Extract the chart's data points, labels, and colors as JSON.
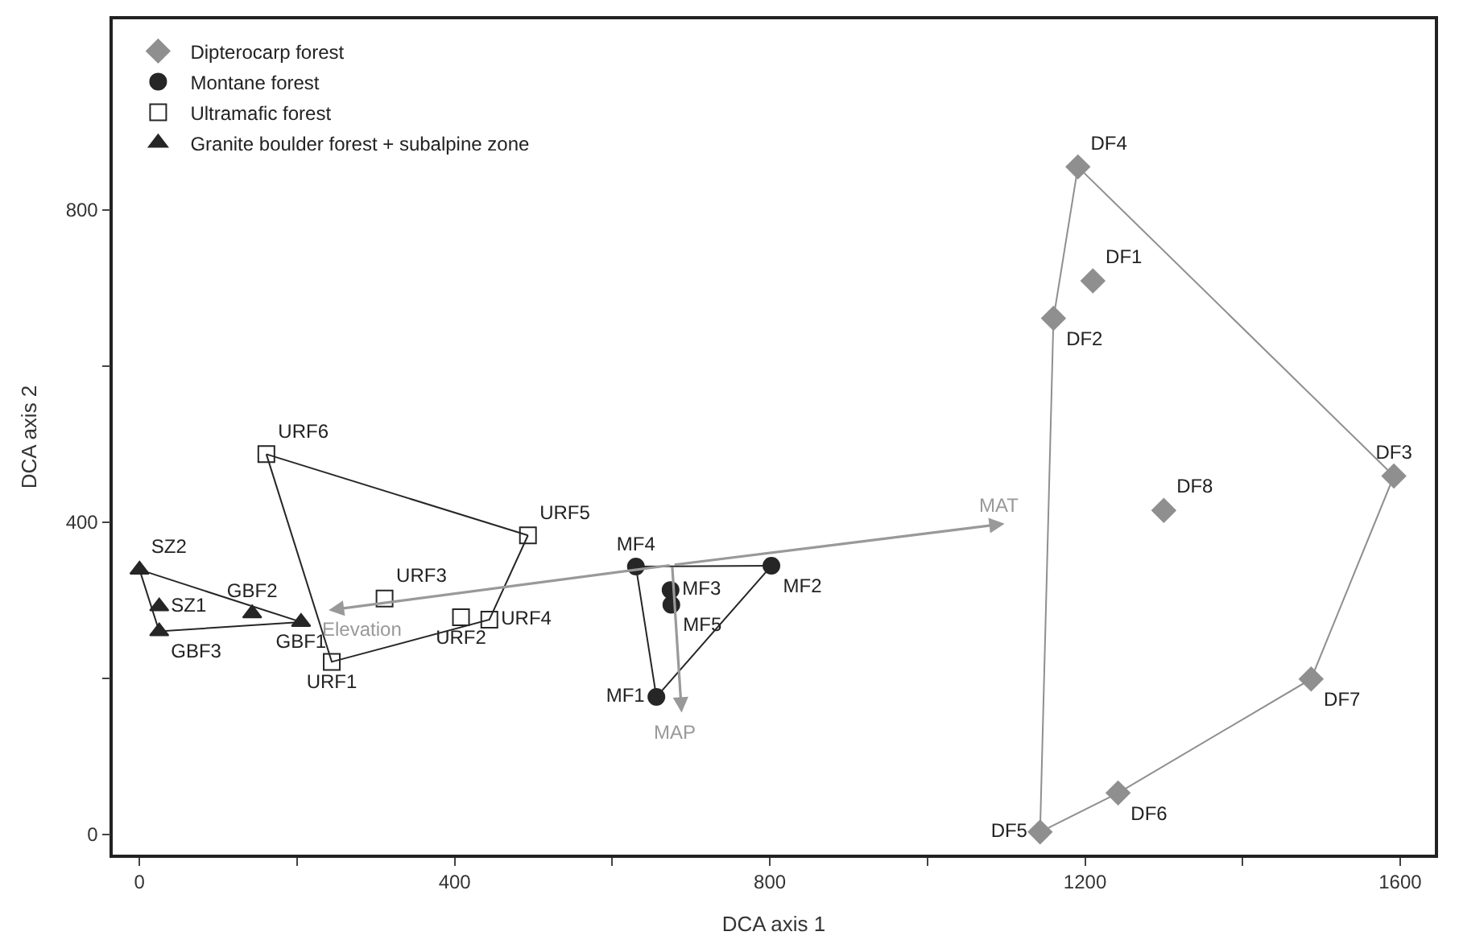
{
  "chart_data": {
    "type": "scatter",
    "xlabel": "DCA axis 1",
    "ylabel": "DCA axis 2",
    "xlim": [
      -34,
      1644
    ],
    "ylim": [
      -26,
      1044
    ],
    "xticks": [
      0,
      {
        "value": 200,
        "label": null
      },
      400,
      {
        "value": 600,
        "label": null
      },
      800,
      {
        "value": 1000,
        "label": null
      },
      1200,
      {
        "value": 1400,
        "label": null
      },
      1600
    ],
    "yticks": [
      0,
      {
        "value": 200,
        "label": null
      },
      400,
      {
        "value": 600,
        "label": null
      },
      800
    ],
    "legend": "top left",
    "series": [
      {
        "name": "Dipterocarp forest",
        "color": "#8f8f8f",
        "marker": "diamond",
        "x": [
          1210,
          1160,
          1592,
          1191,
          1143,
          1242,
          1487,
          1300
        ],
        "values": [
          709,
          661,
          459,
          855,
          3,
          53,
          199,
          415
        ],
        "value_labels": [
          "DF1",
          "DF2",
          "DF3",
          "DF4",
          "DF5",
          "DF6",
          "DF7",
          "DF8"
        ]
      },
      {
        "name": "Montane forest",
        "color": "#262626",
        "marker": "circle",
        "x": [
          656,
          802,
          674,
          630,
          675
        ],
        "values": [
          176,
          344,
          313,
          343,
          294
        ],
        "value_labels": [
          "MF1",
          "MF2",
          "MF3",
          "MF4",
          "MF5"
        ]
      },
      {
        "name": "Ultramafic forest",
        "color": "#ffffff",
        "marker": "square",
        "x": [
          244,
          408,
          311,
          444,
          493,
          161
        ],
        "values": [
          221,
          278,
          302,
          275,
          383,
          487
        ],
        "value_labels": [
          "URF1",
          "URF2",
          "URF3",
          "URF4",
          "URF5",
          "URF6"
        ]
      },
      {
        "name": "Granite boulder forest + subalpine zone",
        "color": "#262626",
        "marker": "triangle",
        "x": [
          205,
          143,
          25,
          25,
          0
        ],
        "values": [
          272,
          283,
          260,
          292,
          339
        ],
        "value_labels": [
          "GBF1",
          "GBF2",
          "GBF3",
          "SZ1",
          "SZ2"
        ]
      },
      {
        "type": "line",
        "color": "#8f8f8f",
        "marker": "none",
        "x": [
          1143,
          1160,
          1191,
          1592
        ],
        "values": [
          3,
          661,
          855,
          459
        ]
      },
      {
        "type": "line",
        "color": "#8f8f8f",
        "marker": "none",
        "x": [
          1143,
          1242,
          1487,
          1592
        ],
        "values": [
          3,
          53,
          199,
          459
        ]
      },
      {
        "type": "line",
        "color": "#262626",
        "marker": "none",
        "x": [
          630,
          802
        ],
        "values": [
          343,
          344
        ]
      },
      {
        "type": "line",
        "color": "#262626",
        "marker": "none",
        "x": [
          630,
          656,
          802
        ],
        "values": [
          343,
          176,
          344
        ]
      },
      {
        "type": "line",
        "color": "#262626",
        "marker": "none",
        "x": [
          161,
          493
        ],
        "values": [
          487,
          383
        ]
      },
      {
        "type": "line",
        "color": "#262626",
        "marker": "none",
        "x": [
          161,
          244,
          444,
          493
        ],
        "values": [
          487,
          221,
          275,
          383
        ]
      },
      {
        "type": "line",
        "color": "#262626",
        "marker": "none",
        "x": [
          0,
          205
        ],
        "values": [
          339,
          272
        ]
      },
      {
        "type": "line",
        "color": "#262626",
        "marker": "none",
        "x": [
          0,
          25,
          205
        ],
        "values": [
          339,
          260,
          272
        ]
      }
    ],
    "annotations": [
      "Elevation",
      "MAT",
      "MAP"
    ]
  }
}
